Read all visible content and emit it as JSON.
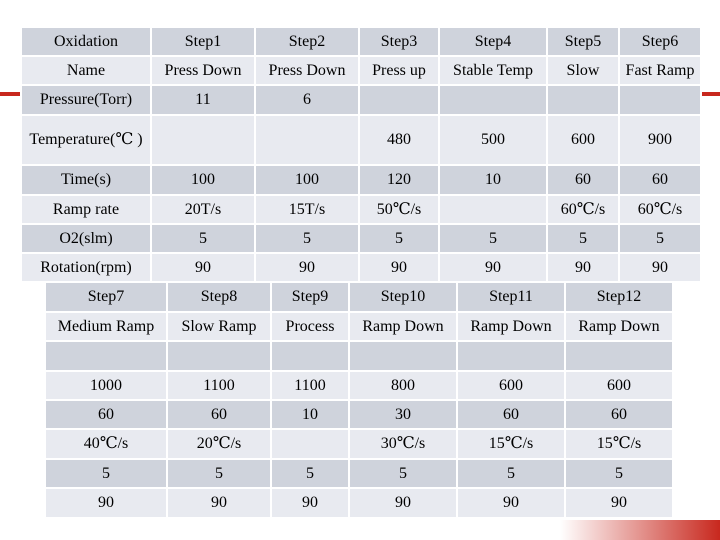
{
  "table1": {
    "rows": [
      [
        "Oxidation",
        "Step1",
        "Step2",
        "Step3",
        "Step4",
        "Step5",
        "Step6"
      ],
      [
        "Name",
        "Press Down",
        "Press Down",
        "Press up",
        "Stable Temp",
        "Slow",
        "Fast Ramp"
      ],
      [
        "Pressure(Torr)",
        "11",
        "6",
        "",
        "",
        "",
        ""
      ],
      [
        "Temperature(℃ )",
        "",
        "",
        "480",
        "500",
        "600",
        "900"
      ],
      [
        "Time(s)",
        "100",
        "100",
        "120",
        "10",
        "60",
        "60"
      ],
      [
        "Ramp rate",
        "20T/s",
        "15T/s",
        "50℃/s",
        "",
        "60℃/s",
        "60℃/s"
      ],
      [
        "O2(slm)",
        "5",
        "5",
        "5",
        "5",
        "5",
        "5"
      ],
      [
        "Rotation(rpm)",
        "90",
        "90",
        "90",
        "90",
        "90",
        "90"
      ]
    ]
  },
  "table2": {
    "rows": [
      [
        "Step7",
        "Step8",
        "Step9",
        "Step10",
        "Step11",
        "Step12"
      ],
      [
        "Medium Ramp",
        "Slow Ramp",
        "Process",
        "Ramp Down",
        "Ramp Down",
        "Ramp Down"
      ],
      [
        "",
        "",
        "",
        "",
        "",
        ""
      ],
      [
        "1000",
        "1100",
        "1100",
        "800",
        "600",
        "600"
      ],
      [
        "60",
        "60",
        "10",
        "30",
        "60",
        "60"
      ],
      [
        "40℃/s",
        "20℃/s",
        "",
        "30℃/s",
        "15℃/s",
        "15℃/s"
      ],
      [
        "5",
        "5",
        "5",
        "5",
        "5",
        "5"
      ],
      [
        "90",
        "90",
        "90",
        "90",
        "90",
        "90"
      ]
    ]
  }
}
